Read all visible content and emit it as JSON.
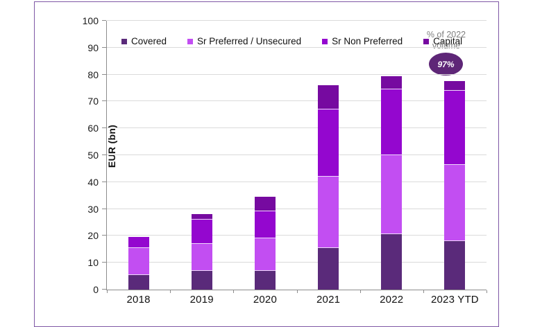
{
  "chart_data": {
    "type": "bar",
    "stacked": true,
    "title": "",
    "xlabel": "",
    "ylabel": "EUR (bn)",
    "ylim": [
      0,
      100
    ],
    "yticks": [
      0,
      10,
      20,
      30,
      40,
      50,
      60,
      70,
      80,
      90,
      100
    ],
    "grid": true,
    "legend_position": "top",
    "categories": [
      "2018",
      "2019",
      "2020",
      "2021",
      "2022",
      "2023 YTD"
    ],
    "series": [
      {
        "name": "Covered",
        "color": "#5a2a7a",
        "values": [
          5.5,
          7,
          7,
          15.5,
          20.5,
          18
        ]
      },
      {
        "name": "Sr Preferred / Unsecured",
        "color": "#c24ef2",
        "values": [
          10,
          10,
          12,
          26.5,
          29.5,
          28.5
        ]
      },
      {
        "name": "Sr Non Preferred",
        "color": "#9407cf",
        "values": [
          4,
          9,
          10,
          25,
          24.5,
          27.5
        ]
      },
      {
        "name": "Capital",
        "color": "#760aa0",
        "values": [
          0,
          2,
          5.5,
          9,
          5,
          3.5
        ]
      }
    ],
    "totals": [
      19.5,
      28,
      34.5,
      76,
      79.5,
      77.5
    ],
    "annotation": {
      "label": "% of 2022 volume",
      "badge_text": "97%",
      "badge_color": "#5e2677"
    }
  }
}
